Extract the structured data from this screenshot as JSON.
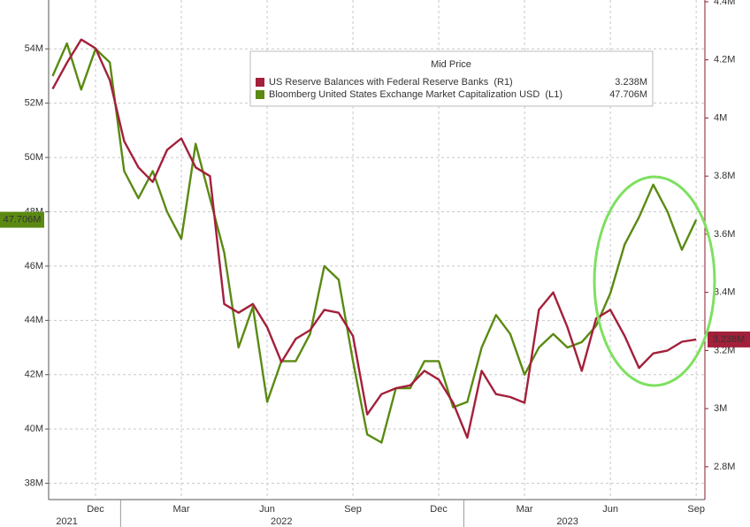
{
  "chart_data": {
    "type": "line",
    "legend_title": "Mid Price",
    "categories": [
      null,
      null,
      null,
      "Dec",
      null,
      null,
      null,
      null,
      null,
      "Mar",
      null,
      null,
      null,
      null,
      null,
      "Jun",
      null,
      null,
      null,
      null,
      null,
      "Sep",
      null,
      null,
      null,
      null,
      null,
      "Dec",
      null,
      null,
      null,
      null,
      null,
      "Mar",
      null,
      null,
      null,
      null,
      null,
      "Jun",
      null,
      null,
      null,
      null,
      null,
      "Sep"
    ],
    "year_labels": [
      null,
      "2021",
      null,
      null,
      null,
      null,
      null,
      null,
      null,
      null,
      null,
      null,
      null,
      null,
      null,
      null,
      "2022",
      null,
      null,
      null,
      null,
      null,
      null,
      null,
      null,
      null,
      null,
      null,
      null,
      null,
      null,
      null,
      null,
      null,
      null,
      null,
      "2023",
      null,
      null,
      null,
      null,
      null,
      null,
      null,
      null,
      null
    ],
    "ylim": [
      37.4,
      55.8
    ],
    "yticks": [
      {
        "value": 38,
        "label": "38M"
      },
      {
        "value": 40,
        "label": "40M"
      },
      {
        "value": 42,
        "label": "42M"
      },
      {
        "value": 44,
        "label": "44M"
      },
      {
        "value": 46,
        "label": "46M"
      },
      {
        "value": 48,
        "label": "48M"
      },
      {
        "value": 50,
        "label": "50M"
      },
      {
        "value": 52,
        "label": "52M"
      },
      {
        "value": 54,
        "label": "54M"
      }
    ],
    "y2lim": [
      2.687,
      4.406
    ],
    "y2ticks": [
      {
        "value": 2.8,
        "label": "2.8M"
      },
      {
        "value": 3.0,
        "label": "3M"
      },
      {
        "value": 3.2,
        "label": "3.2M"
      },
      {
        "value": 3.4,
        "label": "3.4M"
      },
      {
        "value": 3.6,
        "label": "3.6M"
      },
      {
        "value": 3.8,
        "label": "3.8M"
      },
      {
        "value": 4.0,
        "label": "4M"
      },
      {
        "value": 4.2,
        "label": "4.2M"
      },
      {
        "value": 4.4,
        "label": "4.4M"
      }
    ],
    "grid": true,
    "series": [
      {
        "name": "US Reserve Balances with Federal Reserve Banks  (R1)",
        "color": "#a3203a",
        "axis": "y2",
        "values": [
          4.1,
          4.19,
          4.27,
          4.24,
          4.13,
          3.92,
          3.83,
          3.78,
          3.89,
          3.93,
          3.83,
          3.8,
          3.36,
          3.33,
          3.36,
          3.28,
          3.16,
          3.24,
          3.27,
          3.34,
          3.33,
          3.25,
          2.98,
          3.05,
          3.07,
          3.08,
          3.13,
          3.1,
          3.02,
          2.9,
          3.13,
          3.05,
          3.04,
          3.02,
          3.34,
          3.4,
          3.28,
          3.13,
          3.31,
          3.34,
          3.25,
          3.14,
          3.19,
          3.2,
          3.23,
          3.238
        ],
        "value_labels": [
          null,
          null,
          null,
          null,
          null,
          null,
          null,
          null,
          null,
          null,
          null,
          null,
          null,
          null,
          null,
          null,
          null,
          null,
          null,
          null,
          null,
          null,
          null,
          null,
          null,
          null,
          null,
          null,
          null,
          null,
          null,
          null,
          null,
          null,
          null,
          null,
          null,
          null,
          null,
          null,
          null,
          null,
          null,
          null,
          null,
          "3.238M"
        ]
      },
      {
        "name": "Bloomberg United States Exchange Market Capitalization USD  (L1)",
        "color": "#5a8a12",
        "axis": "y",
        "values": [
          53.0,
          54.2,
          52.5,
          54.0,
          53.5,
          49.5,
          48.5,
          49.5,
          48.0,
          47.0,
          50.5,
          48.5,
          46.5,
          43.0,
          44.5,
          41.0,
          42.5,
          42.5,
          43.5,
          46.0,
          45.5,
          42.5,
          39.8,
          39.5,
          41.5,
          41.5,
          42.5,
          42.5,
          40.8,
          41.0,
          43.0,
          44.2,
          43.5,
          42.0,
          43.0,
          43.5,
          43.0,
          43.2,
          43.8,
          45.0,
          46.8,
          47.8,
          49.0,
          48.0,
          46.6,
          47.706
        ],
        "value_labels": [
          null,
          null,
          null,
          null,
          null,
          null,
          null,
          null,
          null,
          null,
          null,
          null,
          null,
          null,
          null,
          null,
          null,
          null,
          null,
          null,
          null,
          null,
          null,
          null,
          null,
          null,
          null,
          null,
          null,
          null,
          null,
          null,
          null,
          null,
          null,
          null,
          null,
          null,
          null,
          null,
          null,
          null,
          null,
          null,
          null,
          "47.706M"
        ]
      }
    ]
  }
}
